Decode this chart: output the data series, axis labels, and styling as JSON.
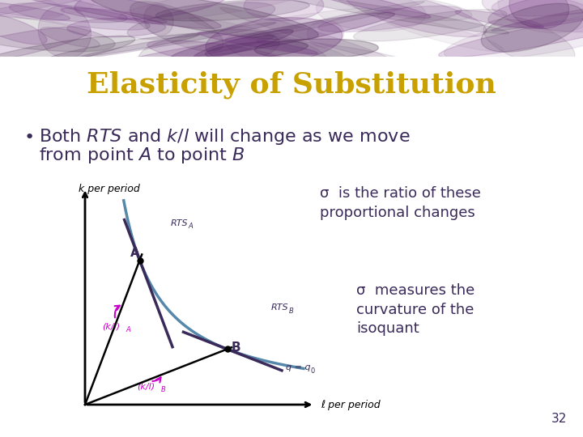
{
  "title": "Elasticity of Substitution",
  "title_color": "#C8A000",
  "title_fontsize": 26,
  "bullet_fontsize": 16,
  "text_color": "#3A2A5A",
  "bg_color": "#FFFFFF",
  "header_color_dark": "#3A2040",
  "header_color_light": "#5C3A6E",
  "sigma_text1": "σ  is the ratio of these\nproportional changes",
  "sigma_text2": "σ  measures the\ncurvature of the\nisoquant",
  "page_number": "32",
  "xlabel": "ℓ per period",
  "ylabel": "k per period",
  "annotation_color": "#CC00CC",
  "isoquant_color": "#5588AA",
  "tangent_color": "#3A2A5A",
  "label_A": "A",
  "label_B": "B",
  "label_RTSA": "RTS",
  "label_RTSA_sub": "A",
  "label_RTSB": "RTS",
  "label_RTSB_sub": "B",
  "label_klA": "(k/l)",
  "label_klA_sub": "A",
  "label_klB": "(k/l)",
  "label_klB_sub": "B",
  "label_q": "q = q",
  "label_q_sub": "0"
}
